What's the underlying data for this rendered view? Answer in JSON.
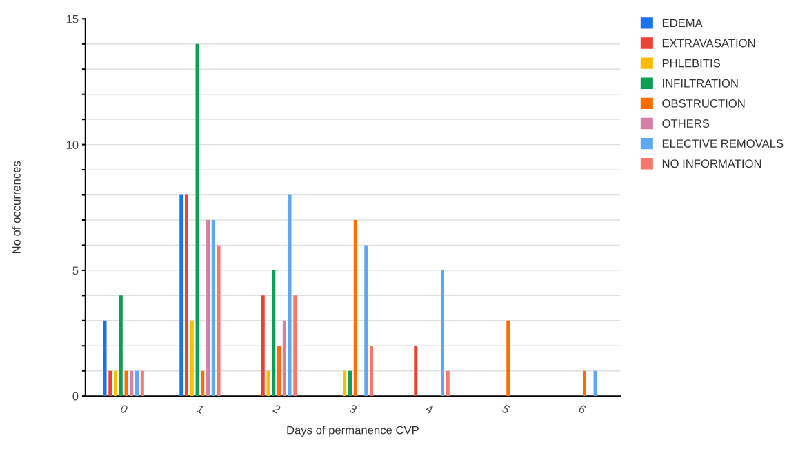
{
  "chart_data": {
    "type": "bar",
    "xlabel": "Days of permanence CVP",
    "ylabel": "No of occurrences",
    "categories": [
      "0",
      "1",
      "2",
      "3",
      "4",
      "5",
      "6"
    ],
    "series": [
      {
        "name": "EDEMA",
        "color": "#1a73e8",
        "values": [
          3,
          8,
          0,
          0,
          0,
          0,
          0
        ]
      },
      {
        "name": "EXTRAVASATION",
        "color": "#ea4335",
        "values": [
          1,
          8,
          4,
          0,
          2,
          0,
          0
        ]
      },
      {
        "name": "PHLEBITIS",
        "color": "#fbbc04",
        "values": [
          1,
          3,
          1,
          1,
          0,
          0,
          0
        ]
      },
      {
        "name": "INFILTRATION",
        "color": "#0f9d58",
        "values": [
          4,
          14,
          5,
          1,
          0,
          0,
          0
        ]
      },
      {
        "name": "OBSTRUCTION",
        "color": "#ff6d01",
        "values": [
          1,
          1,
          2,
          7,
          0,
          3,
          1
        ]
      },
      {
        "name": "OTHERS",
        "color": "#d67fa5",
        "values": [
          1,
          7,
          3,
          0,
          0,
          0,
          0
        ]
      },
      {
        "name": "ELECTIVE REMOVALS",
        "color": "#5ea8f2",
        "values": [
          1,
          7,
          8,
          6,
          5,
          0,
          1
        ]
      },
      {
        "name": "NO INFORMATION",
        "color": "#f7766e",
        "values": [
          1,
          6,
          4,
          2,
          1,
          0,
          0
        ]
      }
    ],
    "ylim": [
      0,
      15
    ],
    "yticks": [
      0,
      {
        "value": 1,
        "label": null
      },
      {
        "value": 2,
        "label": null
      },
      {
        "value": 3,
        "label": null
      },
      {
        "value": 4,
        "label": null
      },
      5,
      {
        "value": 6,
        "label": null
      },
      {
        "value": 7,
        "label": null
      },
      {
        "value": 8,
        "label": null
      },
      {
        "value": 9,
        "label": null
      },
      10,
      {
        "value": 11,
        "label": null
      },
      {
        "value": 12,
        "label": null
      },
      {
        "value": 13,
        "label": null
      },
      {
        "value": 14,
        "label": null
      },
      15
    ],
    "grid": "y",
    "legend": "top right"
  }
}
